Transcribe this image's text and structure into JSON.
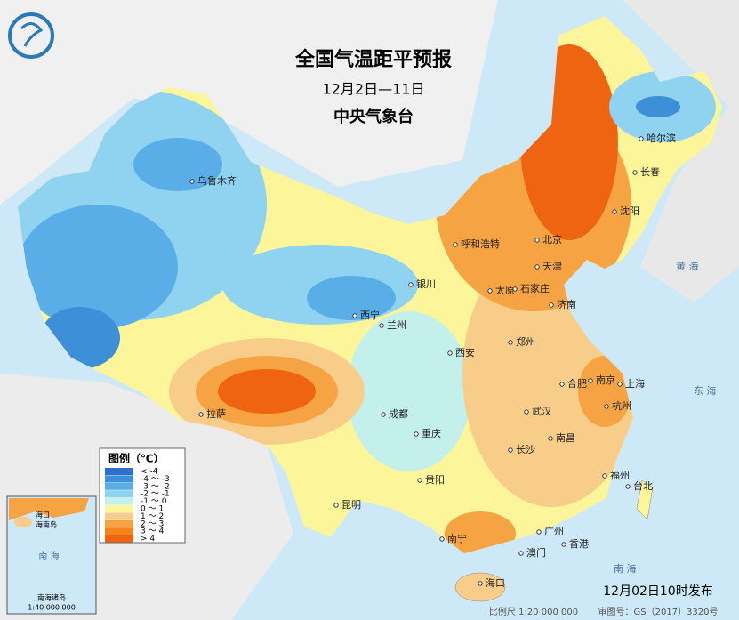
{
  "header": {
    "title": "全国气温距平预报",
    "period": "12月2日—11日",
    "agency": "中央气象台"
  },
  "legend": {
    "title": "图例（℃）",
    "items": [
      {
        "label": "< -4",
        "color": "#2f6fcc"
      },
      {
        "label": "-4 ～ -3",
        "color": "#3d8fd8"
      },
      {
        "label": "-3 ～ -2",
        "color": "#5aaee8"
      },
      {
        "label": "-2 ～ -1",
        "color": "#8fd3f0"
      },
      {
        "label": "-1 ～ 0",
        "color": "#c4f0ec"
      },
      {
        "label": "0 ～ 1",
        "color": "#fdf59a"
      },
      {
        "label": "1 ～ 2",
        "color": "#f8cd8a"
      },
      {
        "label": "2 ～ 3",
        "color": "#f6a443"
      },
      {
        "label": "3 ～ 4",
        "color": "#f3841f"
      },
      {
        "label": "> 4",
        "color": "#ee6410"
      }
    ]
  },
  "cities": [
    "乌鲁木齐",
    "哈尔滨",
    "长春",
    "沈阳",
    "呼和浩特",
    "北京",
    "天津",
    "银川",
    "石家庄",
    "太原",
    "济南",
    "西宁",
    "兰州",
    "郑州",
    "西安",
    "合肥",
    "南京",
    "上海",
    "拉萨",
    "成都",
    "武汉",
    "杭州",
    "重庆",
    "南昌",
    "长沙",
    "贵阳",
    "福州",
    "台北",
    "昆明",
    "广州",
    "南宁",
    "香港",
    "澳门",
    "海口"
  ],
  "seas": [
    "黄 海",
    "东 海",
    "南 海"
  ],
  "inset": {
    "title": "南海诸岛",
    "scale": "1:40 000 000",
    "labels": [
      "海口",
      "海南岛",
      "南 海"
    ]
  },
  "footer": {
    "issued": "12月02日10时发布",
    "scale": "比例尺 1:20 000 000",
    "approval": "审图号：GS（2017）3320号"
  }
}
